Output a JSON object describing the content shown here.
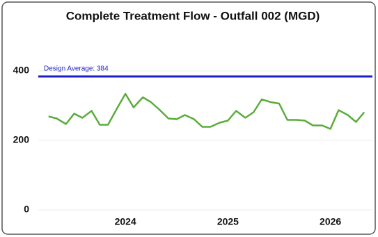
{
  "chart_data": {
    "type": "line",
    "title": "Complete Treatment Flow - Outfall 002 (MGD)",
    "x": [
      2023.25,
      2023.33,
      2023.42,
      2023.5,
      2023.58,
      2023.67,
      2023.75,
      2023.83,
      2023.92,
      2024,
      2024.08,
      2024.17,
      2024.25,
      2024.33,
      2024.42,
      2024.5,
      2024.58,
      2024.67,
      2024.75,
      2024.83,
      2024.92,
      2025,
      2025.08,
      2025.17,
      2025.25,
      2025.33,
      2025.42,
      2025.5,
      2025.58,
      2025.67,
      2025.75,
      2025.83,
      2025.92,
      2026,
      2026.08,
      2026.17,
      2026.25,
      2026.33
    ],
    "series": [
      {
        "name": "Complete Treatment Flow",
        "color": "#5aac3c",
        "values": [
          269,
          263,
          247,
          277,
          265,
          285,
          245,
          245,
          293,
          334,
          295,
          324,
          310,
          289,
          263,
          261,
          273,
          261,
          239,
          239,
          251,
          257,
          285,
          265,
          281,
          318,
          310,
          306,
          259,
          259,
          257,
          243,
          243,
          233,
          287,
          273,
          253,
          281
        ]
      }
    ],
    "reference_line": {
      "label": "Design Average: 384",
      "value": 384,
      "color": "#1c1cc8"
    },
    "xlim": [
      2023.15,
      2026.41
    ],
    "xticks": [
      2024,
      2025,
      2026
    ],
    "ylim": [
      0,
      500
    ],
    "yticks": [
      0,
      200,
      400
    ],
    "grid": true
  }
}
